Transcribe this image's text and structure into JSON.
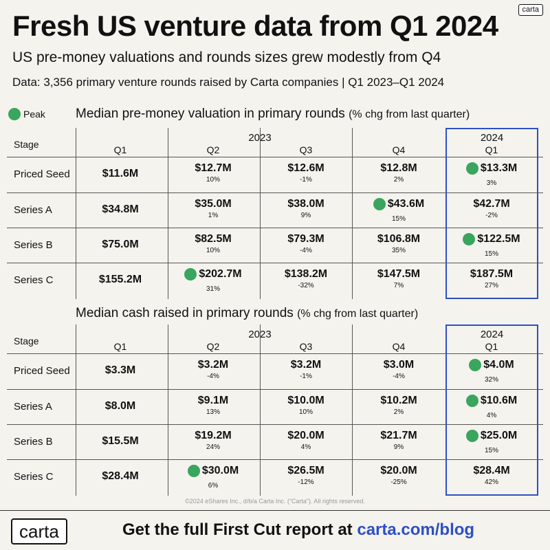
{
  "brand": {
    "badge": "carta",
    "footer_logo": "carta",
    "accent": "#2d4fc4",
    "peak_color": "#3aa55d"
  },
  "title": "Fresh US venture data from Q1 2024",
  "subtitle": "US pre-money valuations and rounds sizes grew modestly from Q4",
  "source": "Data: 3,356 primary venture rounds raised by Carta companies | Q1 2023–Q1 2024",
  "legend": {
    "label": "Peak"
  },
  "columns": {
    "stage_header": "Stage",
    "year_2023": "2023",
    "year_2024": "2024",
    "quarters": [
      "Q1",
      "Q2",
      "Q3",
      "Q4",
      "Q1"
    ]
  },
  "stages": [
    "Priced Seed",
    "Series A",
    "Series B",
    "Series C"
  ],
  "valuation": {
    "title": "Median pre-money valuation in primary rounds",
    "title_sub": "(% chg from last quarter)",
    "rows": [
      [
        {
          "v": "$11.6M",
          "c": ""
        },
        {
          "v": "$12.7M",
          "c": "10%"
        },
        {
          "v": "$12.6M",
          "c": "-1%"
        },
        {
          "v": "$12.8M",
          "c": "2%"
        },
        {
          "v": "$13.3M",
          "c": "3%",
          "peak": true
        }
      ],
      [
        {
          "v": "$34.8M",
          "c": ""
        },
        {
          "v": "$35.0M",
          "c": "1%"
        },
        {
          "v": "$38.0M",
          "c": "9%"
        },
        {
          "v": "$43.6M",
          "c": "15%",
          "peak": true
        },
        {
          "v": "$42.7M",
          "c": "-2%"
        }
      ],
      [
        {
          "v": "$75.0M",
          "c": ""
        },
        {
          "v": "$82.5M",
          "c": "10%"
        },
        {
          "v": "$79.3M",
          "c": "-4%"
        },
        {
          "v": "$106.8M",
          "c": "35%"
        },
        {
          "v": "$122.5M",
          "c": "15%",
          "peak": true
        }
      ],
      [
        {
          "v": "$155.2M",
          "c": ""
        },
        {
          "v": "$202.7M",
          "c": "31%",
          "peak": true
        },
        {
          "v": "$138.2M",
          "c": "-32%"
        },
        {
          "v": "$147.5M",
          "c": "7%"
        },
        {
          "v": "$187.5M",
          "c": "27%"
        }
      ]
    ]
  },
  "cash": {
    "title": "Median cash raised in primary rounds",
    "title_sub": "(% chg from last quarter)",
    "rows": [
      [
        {
          "v": "$3.3M",
          "c": ""
        },
        {
          "v": "$3.2M",
          "c": "-4%"
        },
        {
          "v": "$3.2M",
          "c": "-1%"
        },
        {
          "v": "$3.0M",
          "c": "-4%"
        },
        {
          "v": "$4.0M",
          "c": "32%",
          "peak": true
        }
      ],
      [
        {
          "v": "$8.0M",
          "c": ""
        },
        {
          "v": "$9.1M",
          "c": "13%"
        },
        {
          "v": "$10.0M",
          "c": "10%"
        },
        {
          "v": "$10.2M",
          "c": "2%"
        },
        {
          "v": "$10.6M",
          "c": "4%",
          "peak": true
        }
      ],
      [
        {
          "v": "$15.5M",
          "c": ""
        },
        {
          "v": "$19.2M",
          "c": "24%"
        },
        {
          "v": "$20.0M",
          "c": "4%"
        },
        {
          "v": "$21.7M",
          "c": "9%"
        },
        {
          "v": "$25.0M",
          "c": "15%",
          "peak": true
        }
      ],
      [
        {
          "v": "$28.4M",
          "c": ""
        },
        {
          "v": "$30.0M",
          "c": "6%",
          "peak": true
        },
        {
          "v": "$26.5M",
          "c": "-12%"
        },
        {
          "v": "$20.0M",
          "c": "-25%"
        },
        {
          "v": "$28.4M",
          "c": "42%"
        }
      ]
    ]
  },
  "copyright": "©2024 eShares Inc., d/b/a Carta Inc. (“Carta”). All rights reserved.",
  "footer": {
    "cta_text": "Get the full First Cut report at ",
    "cta_link": "carta.com/blog"
  }
}
